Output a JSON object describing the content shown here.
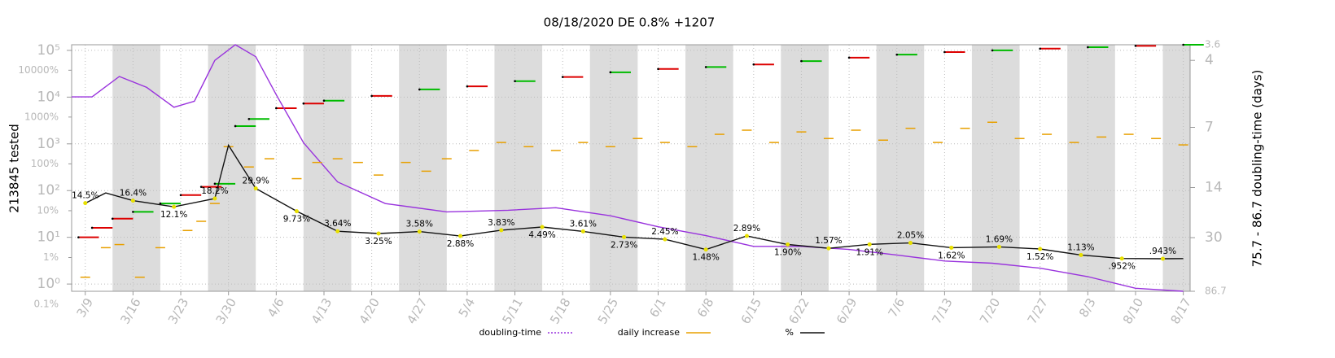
{
  "chart_data": {
    "type": "multi-axis-line",
    "title": "08/18/2020 DE 0.8% +1207",
    "y_label": "213845 tested",
    "y2_label": "75.7 - 86.7 doubling-time (days)",
    "grid": true,
    "xlim": [
      "3/7",
      "8/18"
    ],
    "xticks": [
      "3/9",
      "3/16",
      "3/23",
      "3/30",
      "4/6",
      "4/13",
      "4/20",
      "4/27",
      "5/4",
      "5/11",
      "5/18",
      "5/25",
      "6/1",
      "6/8",
      "6/15",
      "6/22",
      "6/29",
      "7/6",
      "7/13",
      "7/20",
      "7/27",
      "8/3",
      "8/10",
      "8/17"
    ],
    "yscale": "log",
    "ylim": [
      0.7,
      132000
    ],
    "yticks": [
      {
        "value": 1,
        "label": "10⁰"
      },
      {
        "value": 10,
        "label": "10¹"
      },
      {
        "value": 100,
        "label": "10²"
      },
      {
        "value": 1000,
        "label": "10³"
      },
      {
        "value": 10000,
        "label": "10⁴"
      },
      {
        "value": 100000,
        "label": "10⁵"
      }
    ],
    "y3scale": "log",
    "y3lim": [
      0.19,
      35000
    ],
    "y3ticks": [
      {
        "value": 0.1,
        "label": "0.1%"
      },
      {
        "value": 1,
        "label": "1%"
      },
      {
        "value": 10,
        "label": "10%"
      },
      {
        "value": 100,
        "label": "100%"
      },
      {
        "value": 1000,
        "label": "1000%"
      },
      {
        "value": 10000,
        "label": "10000%"
      }
    ],
    "y2scale": "loglog",
    "y2lim": [
      86.7,
      3.6
    ],
    "y2ticks": [
      3.6,
      4,
      7,
      14,
      30,
      86.7
    ],
    "tested": {
      "colors": [
        "#dd0000",
        "#00bb00"
      ],
      "x": [
        "3/8",
        "3/10",
        "3/13",
        "3/16",
        "3/20",
        "3/23",
        "3/26",
        "3/28",
        "3/31",
        "4/2",
        "4/6",
        "4/10",
        "4/13",
        "4/20",
        "4/27",
        "5/4",
        "5/11",
        "5/18",
        "5/25",
        "6/1",
        "6/8",
        "6/15",
        "6/22",
        "6/29",
        "7/6",
        "7/13",
        "7/20",
        "7/27",
        "8/3",
        "8/10",
        "8/17"
      ],
      "values": [
        10,
        16,
        25,
        35,
        53,
        80,
        120,
        140,
        2400,
        3400,
        5800,
        7300,
        8400,
        10600,
        14600,
        17000,
        22000,
        27000,
        34000,
        40000,
        44000,
        50000,
        59000,
        70000,
        81000,
        92000,
        100000,
        109000,
        117000,
        125000,
        132000
      ]
    },
    "series": [
      {
        "name": "doubling-time",
        "color": "#9933dd",
        "style": "line",
        "axis": "y2",
        "x": [
          "3/7",
          "3/10",
          "3/14",
          "3/18",
          "3/22",
          "3/25",
          "3/28",
          "3/31",
          "4/3",
          "4/6",
          "4/10",
          "4/15",
          "4/22",
          "5/1",
          "5/10",
          "5/17",
          "5/25",
          "6/1",
          "6/8",
          "6/15",
          "6/22",
          "6/29",
          "7/6",
          "7/13",
          "7/20",
          "7/27",
          "8/3",
          "8/10",
          "8/17"
        ],
        "values": [
          5.3,
          5.3,
          4.5,
          4.9,
          5.8,
          5.5,
          4.0,
          3.6,
          3.9,
          5.2,
          8.2,
          13,
          17.5,
          19.8,
          19.3,
          18.6,
          21,
          25,
          29,
          35,
          35,
          37,
          41,
          46,
          48,
          53,
          63,
          81,
          86.7
        ]
      },
      {
        "name": "daily increase",
        "color": "#e8a000",
        "style": "dash",
        "axis": "y",
        "x": [
          "3/9",
          "3/12",
          "3/14",
          "3/17",
          "3/20",
          "3/24",
          "3/26",
          "3/28",
          "3/30",
          "4/2",
          "4/5",
          "4/9",
          "4/12",
          "4/15",
          "4/18",
          "4/21",
          "4/25",
          "4/28",
          "5/1",
          "5/5",
          "5/9",
          "5/13",
          "5/17",
          "5/21",
          "5/25",
          "5/29",
          "6/2",
          "6/6",
          "6/10",
          "6/14",
          "6/18",
          "6/22",
          "6/26",
          "6/30",
          "7/4",
          "7/8",
          "7/12",
          "7/16",
          "7/20",
          "7/24",
          "7/28",
          "8/1",
          "8/5",
          "8/9",
          "8/13",
          "8/17"
        ],
        "values": [
          1.4,
          6,
          7,
          1.4,
          6,
          14,
          22,
          53,
          870,
          320,
          480,
          180,
          400,
          480,
          400,
          215,
          400,
          260,
          480,
          720,
          1070,
          870,
          720,
          1070,
          870,
          1300,
          1070,
          870,
          1600,
          1960,
          1070,
          1800,
          1300,
          1960,
          1200,
          2150,
          1070,
          2150,
          2900,
          1300,
          1600,
          1070,
          1400,
          1600,
          1300,
          950
        ]
      },
      {
        "name": "%",
        "color": "#111111",
        "style": "line",
        "axis": "y3",
        "marker_color": "#e8e000",
        "x": [
          "3/9",
          "3/12",
          "3/16",
          "3/22",
          "3/28",
          "3/30",
          "4/3",
          "4/9",
          "4/15",
          "4/21",
          "4/27",
          "5/3",
          "5/9",
          "5/15",
          "5/21",
          "5/27",
          "6/2",
          "6/8",
          "6/14",
          "6/20",
          "6/26",
          "7/2",
          "7/8",
          "7/14",
          "7/21",
          "7/27",
          "8/2",
          "8/8",
          "8/14",
          "8/17"
        ],
        "values": [
          14.5,
          24,
          16.4,
          12.1,
          18.2,
          250,
          29.9,
          9.73,
          3.64,
          3.25,
          3.58,
          2.88,
          3.83,
          4.49,
          3.61,
          2.73,
          2.45,
          1.48,
          2.89,
          1.9,
          1.57,
          1.91,
          2.05,
          1.62,
          1.69,
          1.52,
          1.13,
          0.952,
          0.943,
          0.95
        ],
        "value_labels": [
          "14.5%",
          null,
          "16.4%",
          "12.1%",
          "18.2%",
          null,
          "29.9%",
          "9.73%",
          "3.64%",
          "3.25%",
          "3.58%",
          "2.88%",
          "3.83%",
          "4.49%",
          "3.61%",
          "2.73%",
          "2.45%",
          "1.48%",
          "2.89%",
          "1.90%",
          "1.57%",
          "1.91%",
          "2.05%",
          "1.62%",
          "1.69%",
          "1.52%",
          "1.13%",
          ".952%",
          ".943%",
          null
        ]
      }
    ]
  }
}
